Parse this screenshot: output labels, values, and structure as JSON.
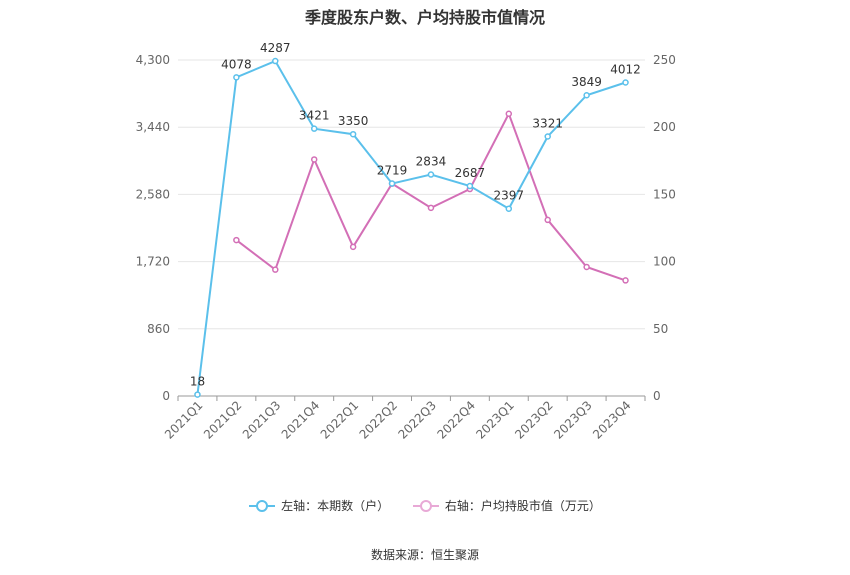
{
  "chart_data": {
    "type": "line",
    "title": "季度股东户数、户均持股市值情况",
    "categories": [
      "2021Q1",
      "2021Q2",
      "2021Q3",
      "2021Q4",
      "2022Q1",
      "2022Q2",
      "2022Q3",
      "2022Q4",
      "2023Q1",
      "2023Q2",
      "2023Q3",
      "2023Q4"
    ],
    "y_left": {
      "ticks": [
        "0",
        "860",
        "1,720",
        "2,580",
        "3,440",
        "4,300"
      ],
      "range": [
        0,
        4300
      ]
    },
    "y_right": {
      "ticks": [
        "0",
        "50",
        "100",
        "150",
        "200",
        "250"
      ],
      "range": [
        0,
        250
      ]
    },
    "series": [
      {
        "name": "左轴：本期数（户）",
        "axis": "left",
        "color": "#5bc0eb",
        "values": [
          18,
          4078,
          4287,
          3421,
          3350,
          2719,
          2834,
          2687,
          2397,
          3321,
          3849,
          4012
        ],
        "labels": [
          "18",
          "4078",
          "4287",
          "3421",
          "3350",
          "2719",
          "2834",
          "2687",
          "2397",
          "3321",
          "3849",
          "4012"
        ]
      },
      {
        "name": "右轴：户均持股市值（万元）",
        "axis": "right",
        "color": "#d36fb6",
        "values": [
          null,
          116,
          94,
          176,
          111,
          158,
          140,
          154,
          210,
          131,
          96,
          86
        ]
      }
    ],
    "legend_position": "bottom",
    "grid": true
  },
  "source": "数据来源：恒生聚源"
}
